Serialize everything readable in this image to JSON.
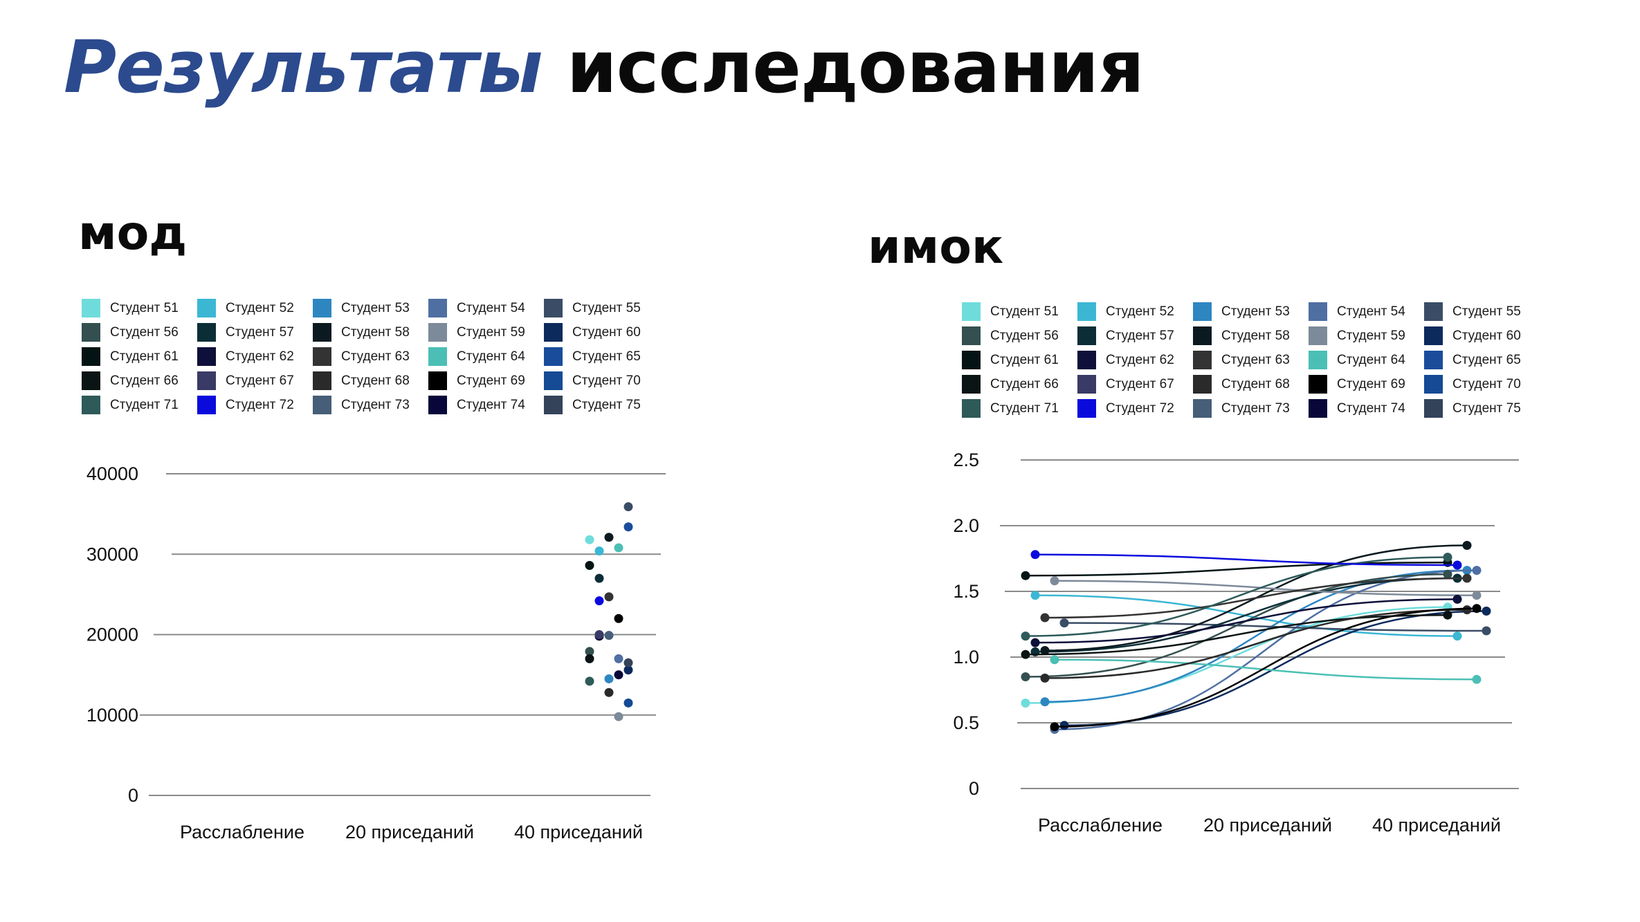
{
  "page": {
    "title_accent": "Результаты",
    "title_rest": "исследования"
  },
  "chart_data": [
    {
      "type": "line",
      "title": "мод",
      "categories": [
        "Расслабление",
        "20 приседаний",
        "40 приседаний"
      ],
      "y_ticks": [
        "0",
        "10000",
        "20000",
        "30000",
        "40000"
      ],
      "ylim": [
        0,
        40000
      ],
      "grid": true,
      "legend_position": "top",
      "series": [
        {
          "name": "Студент 51",
          "color": "#6fdcdc",
          "values": [
            null,
            null,
            31800
          ]
        },
        {
          "name": "Студент 52",
          "color": "#3bb7d4",
          "values": [
            null,
            null,
            30400
          ]
        },
        {
          "name": "Студент 53",
          "color": "#2e86c1",
          "values": [
            null,
            null,
            14500
          ]
        },
        {
          "name": "Студент 54",
          "color": "#4f6fa3",
          "values": [
            null,
            null,
            17000
          ]
        },
        {
          "name": "Студент 55",
          "color": "#3b4d66",
          "values": [
            null,
            null,
            35900
          ]
        },
        {
          "name": "Студент 56",
          "color": "#344f4f",
          "values": [
            null,
            null,
            17900
          ]
        },
        {
          "name": "Студент 57",
          "color": "#0b2e36",
          "values": [
            null,
            null,
            27000
          ]
        },
        {
          "name": "Студент 58",
          "color": "#0b1a20",
          "values": [
            null,
            null,
            32100
          ]
        },
        {
          "name": "Студент 59",
          "color": "#7d8a99",
          "values": [
            null,
            null,
            9800
          ]
        },
        {
          "name": "Студент 60",
          "color": "#0c2a5c",
          "values": [
            null,
            null,
            15600
          ]
        },
        {
          "name": "Студент 61",
          "color": "#041414",
          "values": [
            null,
            null,
            28600
          ]
        },
        {
          "name": "Студент 62",
          "color": "#0e0f3a",
          "values": [
            null,
            null,
            19800
          ]
        },
        {
          "name": "Студент 63",
          "color": "#333333",
          "values": [
            null,
            null,
            24700
          ]
        },
        {
          "name": "Студент 64",
          "color": "#4bbfb5",
          "values": [
            null,
            null,
            30800
          ]
        },
        {
          "name": "Студент 65",
          "color": "#1a4c9c",
          "values": [
            null,
            null,
            33400
          ]
        },
        {
          "name": "Студент 66",
          "color": "#0a1414",
          "values": [
            null,
            null,
            17000
          ]
        },
        {
          "name": "Студент 67",
          "color": "#3a3a66",
          "values": [
            null,
            null,
            20000
          ]
        },
        {
          "name": "Студент 68",
          "color": "#2a2a2a",
          "values": [
            null,
            null,
            12800
          ]
        },
        {
          "name": "Студент 69",
          "color": "#000000",
          "values": [
            null,
            null,
            22000
          ]
        },
        {
          "name": "Студент 70",
          "color": "#154a94",
          "values": [
            null,
            null,
            11500
          ]
        },
        {
          "name": "Студент 71",
          "color": "#2e5a5a",
          "values": [
            null,
            null,
            14200
          ]
        },
        {
          "name": "Студент 72",
          "color": "#0a0add",
          "values": [
            null,
            null,
            24200
          ]
        },
        {
          "name": "Студент 73",
          "color": "#475e78",
          "values": [
            null,
            null,
            19900
          ]
        },
        {
          "name": "Студент 74",
          "color": "#07073a",
          "values": [
            null,
            null,
            15000
          ]
        },
        {
          "name": "Студент 75",
          "color": "#34435a",
          "values": [
            null,
            null,
            16500
          ]
        }
      ]
    },
    {
      "type": "line",
      "title": "имок",
      "categories": [
        "Расслабление",
        "20 приседаний",
        "40 приседаний"
      ],
      "y_ticks": [
        "0",
        "0.5",
        "1.0",
        "1.5",
        "2.0",
        "2.5"
      ],
      "ylim": [
        0,
        2.5
      ],
      "grid": true,
      "legend_position": "top",
      "series": [
        {
          "name": "Студент 51",
          "color": "#6fdcdc",
          "values": [
            0.65,
            null,
            1.38
          ]
        },
        {
          "name": "Студент 52",
          "color": "#3bb7d4",
          "values": [
            1.47,
            null,
            1.16
          ]
        },
        {
          "name": "Студент 53",
          "color": "#2e86c1",
          "values": [
            0.66,
            null,
            1.66
          ]
        },
        {
          "name": "Студент 54",
          "color": "#4f6fa3",
          "values": [
            0.45,
            null,
            1.66
          ]
        },
        {
          "name": "Студент 55",
          "color": "#3b4d66",
          "values": [
            1.26,
            null,
            1.2
          ]
        },
        {
          "name": "Студент 56",
          "color": "#344f4f",
          "values": [
            0.85,
            null,
            1.63
          ]
        },
        {
          "name": "Студент 57",
          "color": "#0b2e36",
          "values": [
            1.04,
            null,
            1.6
          ]
        },
        {
          "name": "Студент 58",
          "color": "#0b1a20",
          "values": [
            1.05,
            null,
            1.85
          ]
        },
        {
          "name": "Студент 59",
          "color": "#7d8a99",
          "values": [
            1.58,
            null,
            1.47
          ]
        },
        {
          "name": "Студент 60",
          "color": "#0c2a5c",
          "values": [
            0.48,
            null,
            1.35
          ]
        },
        {
          "name": "Студент 61",
          "color": "#041414",
          "values": [
            1.62,
            null,
            1.72
          ]
        },
        {
          "name": "Студент 62",
          "color": "#0e0f3a",
          "values": [
            1.11,
            null,
            1.44
          ]
        },
        {
          "name": "Студент 63",
          "color": "#333333",
          "values": [
            1.3,
            null,
            1.6
          ]
        },
        {
          "name": "Студент 64",
          "color": "#4bbfb5",
          "values": [
            0.98,
            null,
            0.83
          ]
        },
        {
          "name": "Студент 65",
          "color": "#1a4c9c",
          "values": [
            null,
            null,
            null
          ]
        },
        {
          "name": "Студент 66",
          "color": "#0a1414",
          "values": [
            1.02,
            null,
            1.32
          ]
        },
        {
          "name": "Студент 67",
          "color": "#3a3a66",
          "values": [
            null,
            null,
            null
          ]
        },
        {
          "name": "Студент 68",
          "color": "#2a2a2a",
          "values": [
            0.84,
            null,
            1.36
          ]
        },
        {
          "name": "Студент 69",
          "color": "#000000",
          "values": [
            0.47,
            null,
            1.37
          ]
        },
        {
          "name": "Студент 70",
          "color": "#154a94",
          "values": [
            null,
            null,
            null
          ]
        },
        {
          "name": "Студент 71",
          "color": "#2e5a5a",
          "values": [
            1.16,
            null,
            1.76
          ]
        },
        {
          "name": "Студент 72",
          "color": "#0a0add",
          "values": [
            1.78,
            null,
            1.7
          ]
        },
        {
          "name": "Студент 73",
          "color": "#475e78",
          "values": [
            null,
            null,
            null
          ]
        },
        {
          "name": "Студент 74",
          "color": "#07073a",
          "values": [
            null,
            null,
            null
          ]
        },
        {
          "name": "Студент 75",
          "color": "#34435a",
          "values": [
            null,
            null,
            null
          ]
        }
      ]
    }
  ]
}
